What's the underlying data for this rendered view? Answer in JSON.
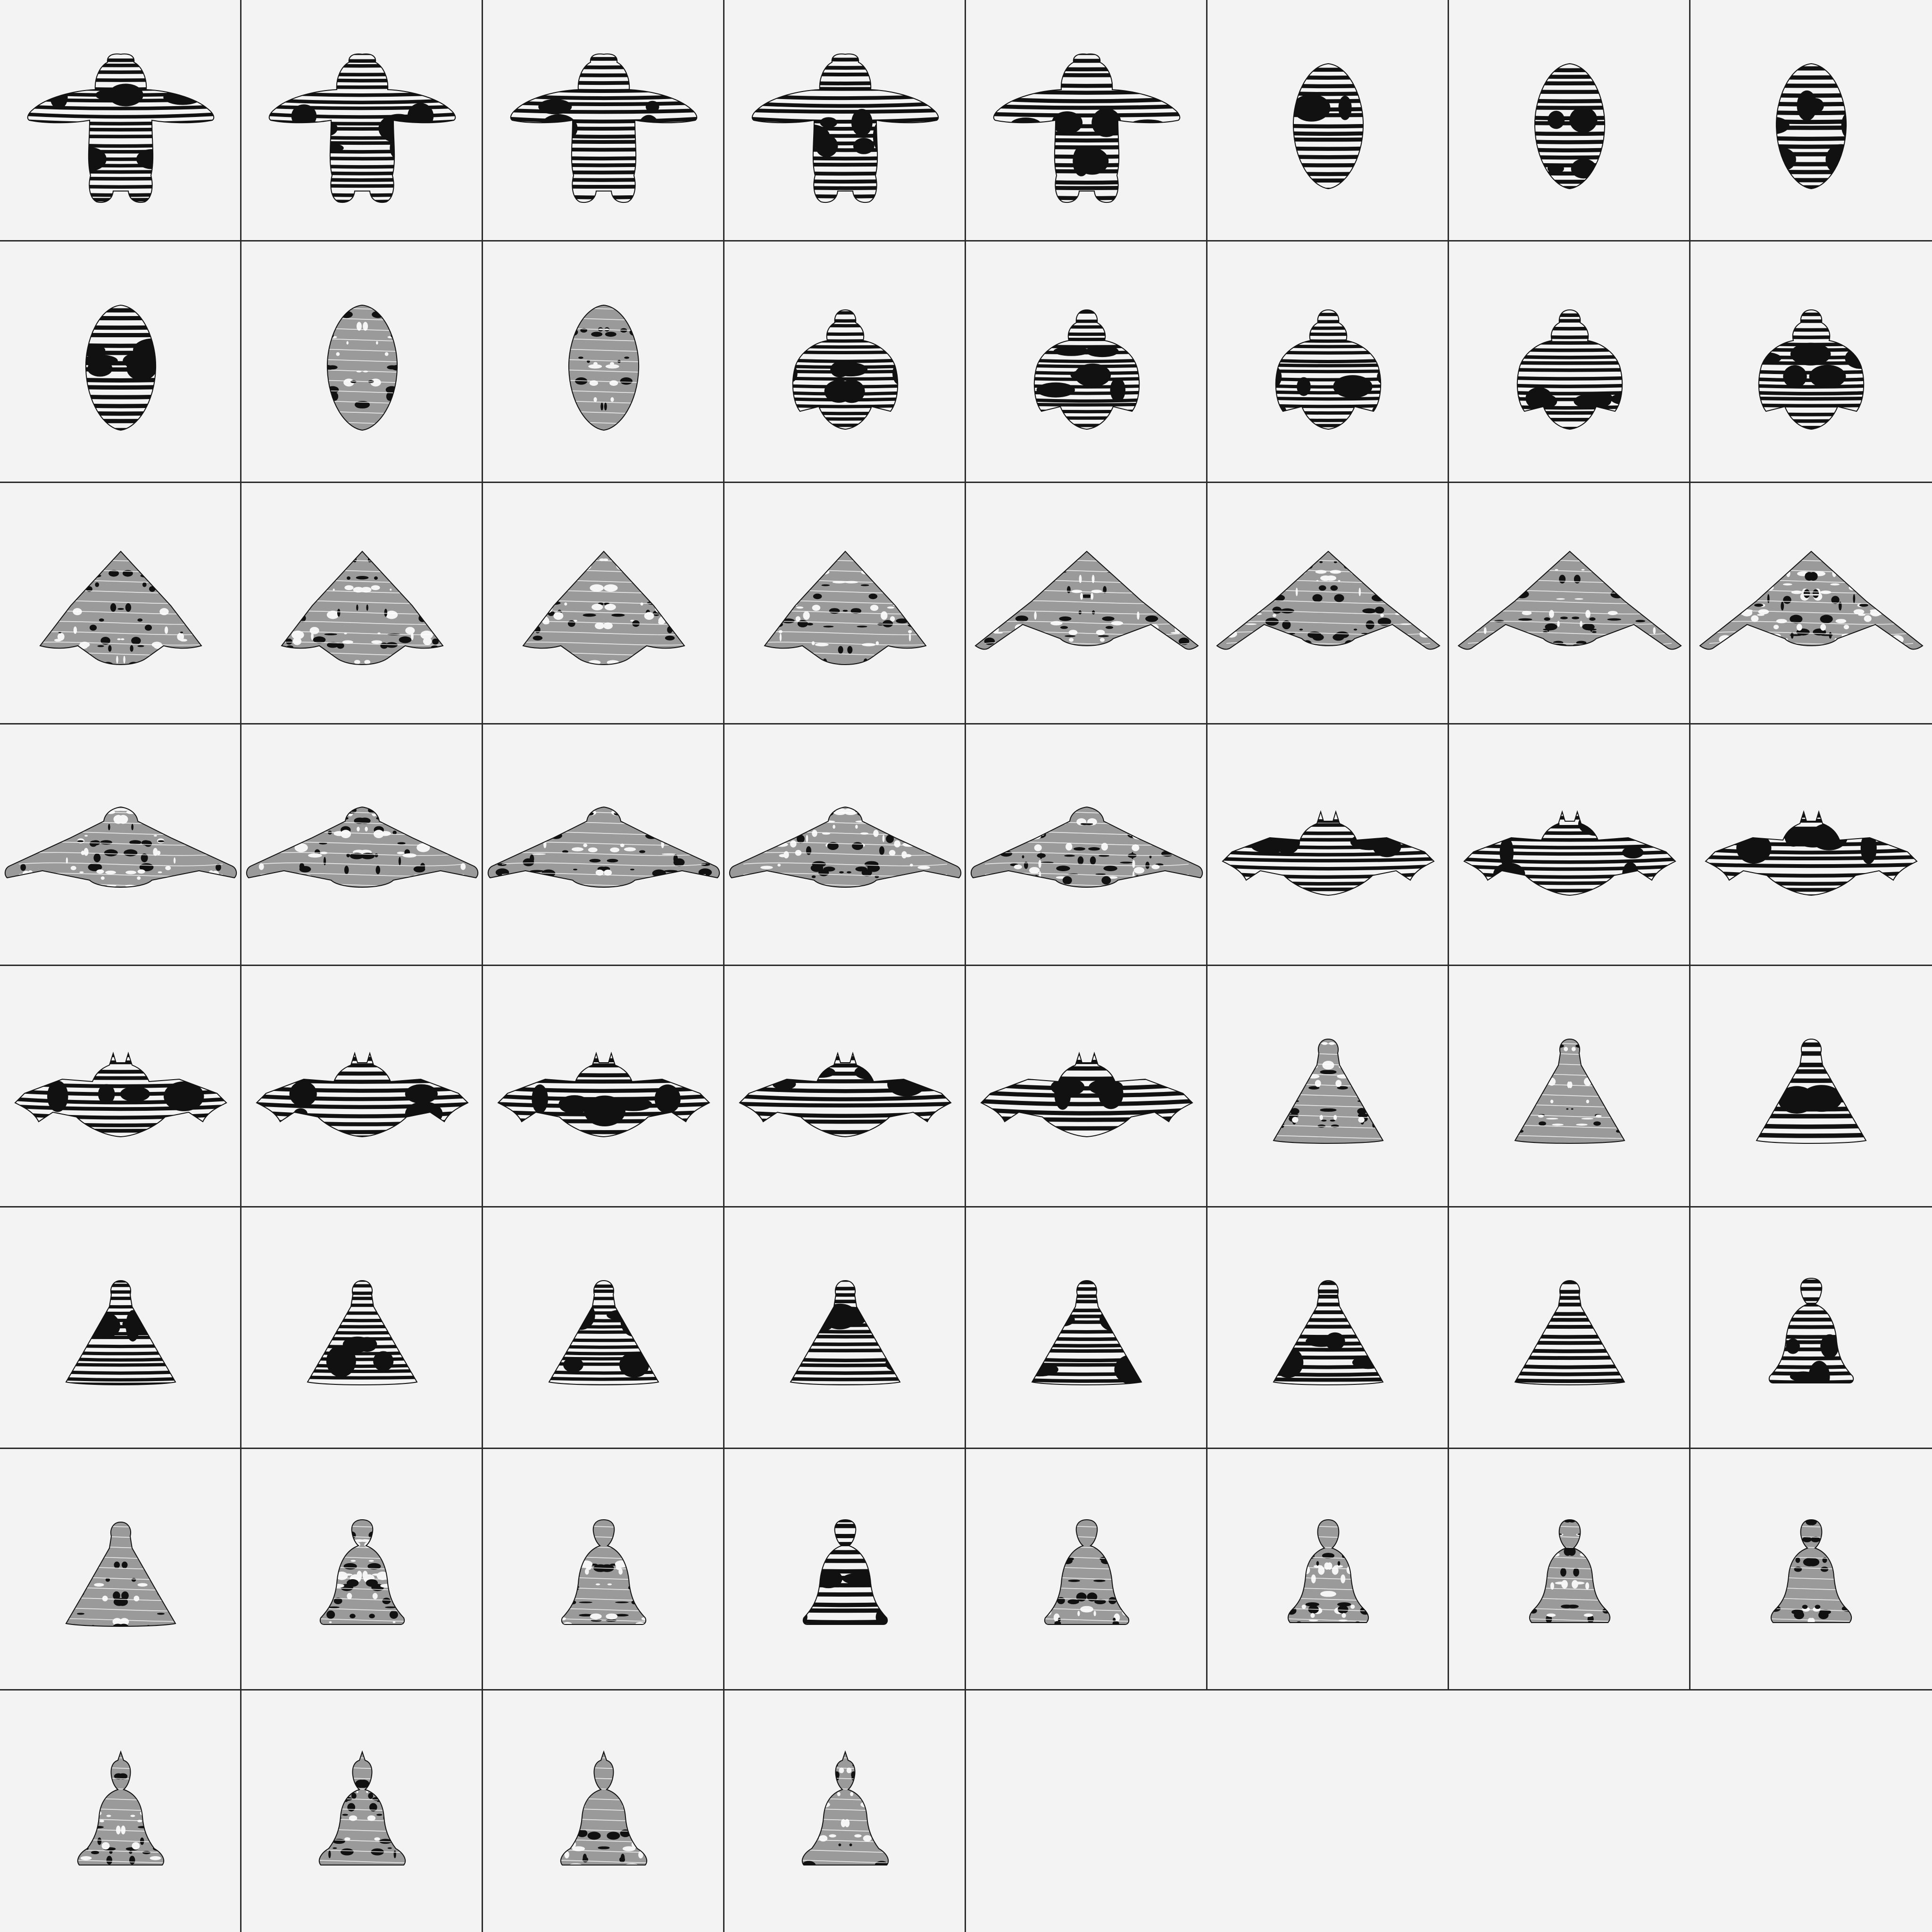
{
  "grid": {
    "columns": 8,
    "rows": 8,
    "background_color": "#f3f3f3",
    "line_color": "#2a2a2a",
    "ink_color": "#111111",
    "frame_count": 60
  },
  "frames": [
    {
      "shape": "bear-with-wings",
      "pattern": "stripes"
    },
    {
      "shape": "bear-with-wings",
      "pattern": "stripes"
    },
    {
      "shape": "bear-with-wings",
      "pattern": "stripes"
    },
    {
      "shape": "bear-with-wings",
      "pattern": "stripes"
    },
    {
      "shape": "bear-with-wings",
      "pattern": "stripes"
    },
    {
      "shape": "egg",
      "pattern": "stripes"
    },
    {
      "shape": "egg",
      "pattern": "stripes"
    },
    {
      "shape": "egg",
      "pattern": "stripes"
    },
    {
      "shape": "egg",
      "pattern": "stripes"
    },
    {
      "shape": "egg",
      "pattern": "mirror-chrome"
    },
    {
      "shape": "egg",
      "pattern": "mirror-chrome"
    },
    {
      "shape": "bee",
      "pattern": "stripes"
    },
    {
      "shape": "bee",
      "pattern": "stripes"
    },
    {
      "shape": "bee",
      "pattern": "stripes"
    },
    {
      "shape": "bee",
      "pattern": "stripes"
    },
    {
      "shape": "bee",
      "pattern": "stripes"
    },
    {
      "shape": "triangle-wing",
      "pattern": "mirror-chrome"
    },
    {
      "shape": "triangle-wing",
      "pattern": "mirror-chrome"
    },
    {
      "shape": "triangle-wing",
      "pattern": "mirror-chrome"
    },
    {
      "shape": "triangle-wing",
      "pattern": "mirror-chrome"
    },
    {
      "shape": "zigzag-wing",
      "pattern": "mirror-chrome"
    },
    {
      "shape": "zigzag-wing",
      "pattern": "mirror-chrome"
    },
    {
      "shape": "zigzag-wing",
      "pattern": "mirror-chrome"
    },
    {
      "shape": "zigzag-wing",
      "pattern": "mirror-chrome"
    },
    {
      "shape": "wide-bat",
      "pattern": "mirror-chrome"
    },
    {
      "shape": "wide-bat",
      "pattern": "mirror-chrome"
    },
    {
      "shape": "wide-bat",
      "pattern": "mirror-chrome"
    },
    {
      "shape": "wide-bat",
      "pattern": "mirror-chrome"
    },
    {
      "shape": "wide-bat",
      "pattern": "mirror-chrome"
    },
    {
      "shape": "bat",
      "pattern": "stripes"
    },
    {
      "shape": "bat",
      "pattern": "stripes"
    },
    {
      "shape": "bat",
      "pattern": "stripes"
    },
    {
      "shape": "bat",
      "pattern": "stripes"
    },
    {
      "shape": "bat",
      "pattern": "stripes"
    },
    {
      "shape": "bat",
      "pattern": "stripes"
    },
    {
      "shape": "bat",
      "pattern": "stripes"
    },
    {
      "shape": "bat",
      "pattern": "stripes"
    },
    {
      "shape": "triangle-figure",
      "pattern": "mirror-chrome"
    },
    {
      "shape": "triangle-figure",
      "pattern": "mirror-chrome"
    },
    {
      "shape": "triangle-figure",
      "pattern": "stripes"
    },
    {
      "shape": "triangle-figure",
      "pattern": "stripes"
    },
    {
      "shape": "triangle-figure",
      "pattern": "stripes"
    },
    {
      "shape": "triangle-figure",
      "pattern": "stripes"
    },
    {
      "shape": "triangle-figure",
      "pattern": "stripes"
    },
    {
      "shape": "triangle-figure",
      "pattern": "stripes"
    },
    {
      "shape": "triangle-figure",
      "pattern": "stripes"
    },
    {
      "shape": "triangle-figure",
      "pattern": "stripes"
    },
    {
      "shape": "bell",
      "pattern": "stripes"
    },
    {
      "shape": "triangle-figure",
      "pattern": "mirror-chrome"
    },
    {
      "shape": "bell",
      "pattern": "mirror-chrome"
    },
    {
      "shape": "bell",
      "pattern": "mirror-chrome"
    },
    {
      "shape": "bell",
      "pattern": "stripes"
    },
    {
      "shape": "bell",
      "pattern": "mirror-chrome"
    },
    {
      "shape": "seated-figure",
      "pattern": "mirror-chrome"
    },
    {
      "shape": "seated-figure",
      "pattern": "mirror-chrome"
    },
    {
      "shape": "seated-figure",
      "pattern": "mirror-chrome"
    },
    {
      "shape": "buddha",
      "pattern": "mirror-chrome"
    },
    {
      "shape": "buddha",
      "pattern": "mirror-chrome"
    },
    {
      "shape": "buddha",
      "pattern": "mirror-chrome"
    },
    {
      "shape": "buddha",
      "pattern": "mirror-chrome"
    }
  ]
}
